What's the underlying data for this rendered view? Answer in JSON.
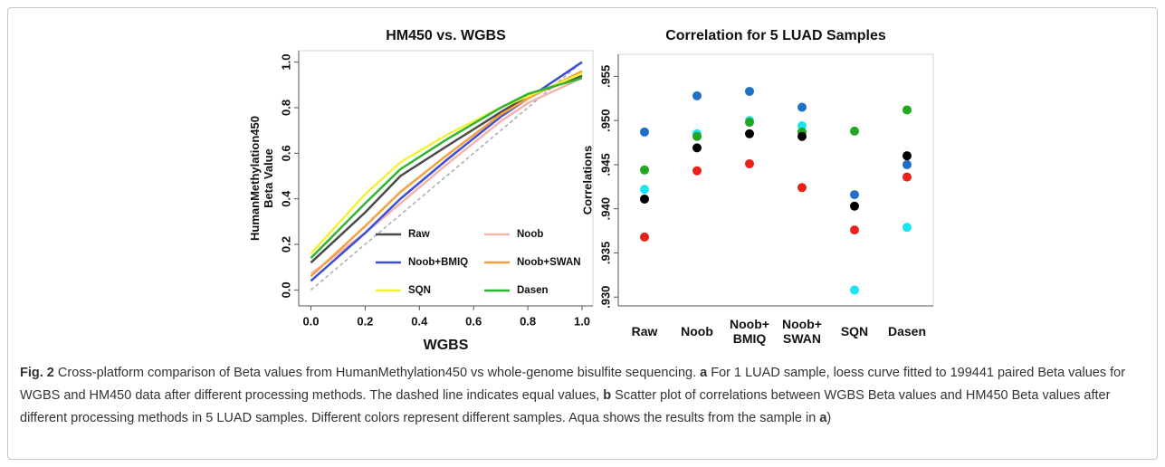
{
  "chart_data": [
    {
      "type": "line",
      "title": "HM450 vs. WGBS",
      "xlabel": "WGBS",
      "ylabel": "HumanMethylation450\nBeta Value",
      "x": [
        0,
        0.2,
        0.33,
        0.5,
        0.7,
        0.8,
        1
      ],
      "series": [
        {
          "name": "Raw",
          "color": "#4a4a4a",
          "values": [
            0.12,
            0.34,
            0.5,
            0.63,
            0.78,
            0.85,
            0.94
          ]
        },
        {
          "name": "Noob",
          "color": "#f4b3ad",
          "values": [
            0.07,
            0.25,
            0.38,
            0.55,
            0.74,
            0.82,
            0.93
          ]
        },
        {
          "name": "Noob+BMIQ",
          "color": "#3a4fd6",
          "values": [
            0.04,
            0.25,
            0.4,
            0.57,
            0.76,
            0.84,
            1.0
          ]
        },
        {
          "name": "Noob+SWAN",
          "color": "#f5a040",
          "values": [
            0.06,
            0.28,
            0.43,
            0.59,
            0.77,
            0.84,
            0.96
          ]
        },
        {
          "name": "SQN",
          "color": "#f2f23c",
          "values": [
            0.16,
            0.42,
            0.56,
            0.68,
            0.8,
            0.85,
            0.95
          ]
        },
        {
          "name": "Dasen",
          "color": "#2fb52f",
          "values": [
            0.14,
            0.38,
            0.53,
            0.66,
            0.8,
            0.86,
            0.93
          ]
        }
      ],
      "xlim": [
        -0.045,
        1.04
      ],
      "ylim": [
        -0.07,
        1.05
      ],
      "xticks": [
        {
          "value": 0,
          "label": "0.0"
        },
        0.2,
        0.4,
        0.6,
        0.8,
        {
          "value": 1,
          "label": "1.0"
        }
      ],
      "yticks": [
        {
          "value": 0,
          "label": "0.0"
        },
        0.2,
        0.4,
        0.6,
        0.8,
        {
          "value": 1,
          "label": "1.0"
        }
      ],
      "legend": "lower right"
    },
    {
      "type": "scatter",
      "title": "Correlation for 5 LUAD Samples",
      "ylabel": "Correlations",
      "categories": [
        "Raw",
        "Noob",
        "Noob+\nBMIQ",
        "Noob+\nSWAN",
        "SQN",
        "Dasen"
      ],
      "series": [
        {
          "color": "#1f6fc6",
          "values": [
            0.9487,
            0.9528,
            0.9533,
            0.9515,
            0.9416,
            0.945
          ]
        },
        {
          "color": "#17e6f0",
          "values": [
            0.9422,
            0.9485,
            0.95,
            0.9494,
            0.9308,
            0.9379
          ]
        },
        {
          "color": "#1fa81f",
          "values": [
            0.9444,
            0.9482,
            0.9498,
            0.9487,
            0.9488,
            0.9512
          ]
        },
        {
          "color": "#000000",
          "values": [
            0.9411,
            0.9469,
            0.9485,
            0.9482,
            0.9403,
            0.946
          ]
        },
        {
          "color": "#e8221a",
          "values": [
            0.9368,
            0.9443,
            0.9451,
            0.9424,
            0.9376,
            0.9436
          ]
        }
      ],
      "ylim": [
        0.929,
        0.9575
      ],
      "yticks": [
        {
          "value": 0.93,
          "label": ".930"
        },
        {
          "value": 0.935,
          "label": ".935"
        },
        {
          "value": 0.94,
          "label": ".940"
        },
        {
          "value": 0.945,
          "label": ".945"
        },
        {
          "value": 0.95,
          "label": ".950"
        },
        {
          "value": 0.955,
          "label": ".955"
        }
      ]
    }
  ],
  "caption": {
    "parts": [
      "Fig. 2",
      " Cross-platform comparison of Beta values from HumanMethylation450 vs whole-genome bisulfite sequencing. ",
      "a",
      " For 1 LUAD sample, loess curve fitted to 199441 paired Beta values for WGBS and HM450 data after different processing methods. The dashed line indicates equal values, ",
      "b",
      " Scatter plot of correlations between WGBS Beta values and HM450 Beta values after different processing methods in 5 LUAD samples. Different colors represent different samples. Aqua shows the results from the sample in ",
      "a",
      ")"
    ]
  }
}
